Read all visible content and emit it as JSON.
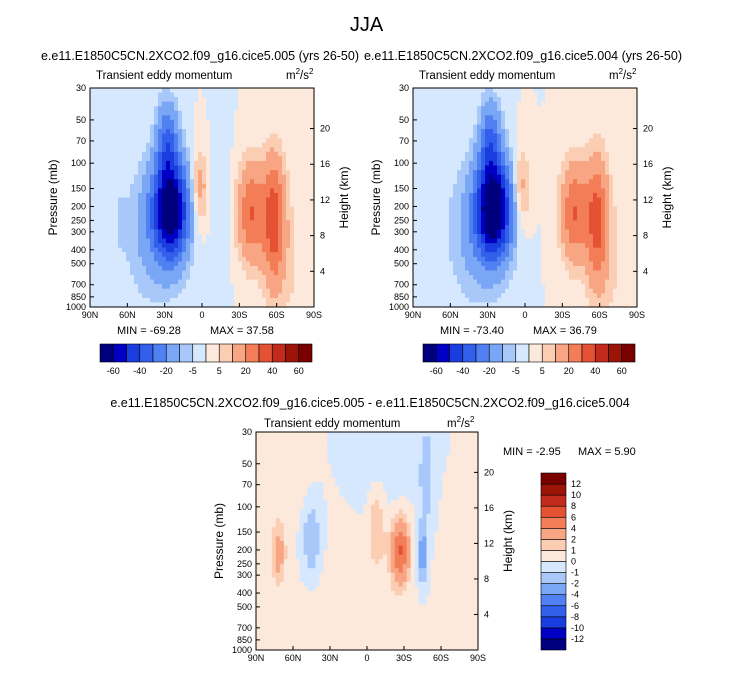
{
  "main_title": "JJA",
  "palette": [
    "#00007f",
    "#0000c4",
    "#1a3de0",
    "#3260ea",
    "#5080f2",
    "#7aa6f6",
    "#a8c8fa",
    "#d6e8fd",
    "#fde9dc",
    "#fbcdb2",
    "#f7a582",
    "#f27d56",
    "#e45233",
    "#c22b1c",
    "#9b1408",
    "#7a0000"
  ],
  "chart_data": [
    {
      "type": "heatmap",
      "title": "e.e11.E1850C5CN.2XCO2.f09_g16.cice5.005 (yrs 26-50)",
      "subtitle": "Transient eddy momentum",
      "units_base": "m",
      "units_exp1": "2",
      "units_mid": "/s",
      "units_exp2": "2",
      "xlabel": "",
      "ylabel": "Pressure (mb)",
      "y2label": "Height (km)",
      "xticks": [
        "90N",
        "60N",
        "30N",
        "0",
        "30S",
        "60S",
        "90S"
      ],
      "xlim": [
        90,
        -90
      ],
      "yticks": [
        "30",
        "50",
        "70",
        "100",
        "150",
        "200",
        "250",
        "300",
        "400",
        "500",
        "700",
        "850",
        "1000"
      ],
      "yticks_values": [
        30,
        50,
        70,
        100,
        150,
        200,
        250,
        300,
        400,
        500,
        700,
        850,
        1000
      ],
      "ylim": [
        30,
        1000
      ],
      "y2ticks": [
        "20",
        "16",
        "12",
        "8",
        "4"
      ],
      "y2ticks_values": [
        20,
        16,
        12,
        8,
        4
      ],
      "min_label": "MIN = -69.28",
      "max_label": "MAX = 37.58",
      "min": -69.28,
      "max": 37.58,
      "levels": [
        -70,
        -60,
        -50,
        -40,
        -30,
        -20,
        -10,
        -5,
        0,
        5,
        10,
        20,
        30,
        40,
        50,
        60,
        70
      ],
      "colorbar_labels": [
        "-60",
        "-40",
        "-20",
        "-5",
        "5",
        "20",
        "40",
        "60"
      ],
      "colorbar_label_levels": [
        -60,
        -40,
        -20,
        -5,
        5,
        20,
        40,
        60
      ],
      "features": [
        {
          "lat": 25,
          "p": 210,
          "amp": -68,
          "wlat": 10,
          "wz": 0.55
        },
        {
          "lat": 28,
          "p": 70,
          "amp": -28,
          "wlat": 6,
          "wz": 0.45
        },
        {
          "lat": 40,
          "p": 300,
          "amp": -12,
          "wlat": 16,
          "wz": 0.8
        },
        {
          "lat": -58,
          "p": 250,
          "amp": 34,
          "wlat": 6,
          "wz": 0.7
        },
        {
          "lat": -40,
          "p": 220,
          "amp": 30,
          "wlat": 8,
          "wz": 0.55
        },
        {
          "lat": 2,
          "p": 150,
          "amp": 16,
          "wlat": 5,
          "wz": 0.45
        },
        {
          "lat": -70,
          "p": 500,
          "amp": 5,
          "wlat": 14,
          "wz": 1.0
        },
        {
          "lat": 65,
          "p": 250,
          "amp": -5,
          "wlat": 3,
          "wz": 0.3
        },
        {
          "lat": -15,
          "p": 200,
          "amp": -4,
          "wlat": 6,
          "wz": 0.9
        }
      ]
    },
    {
      "type": "heatmap",
      "title": "e.e11.E1850C5CN.2XCO2.f09_g16.cice5.004 (yrs 26-50)",
      "subtitle": "Transient eddy momentum",
      "units_base": "m",
      "units_exp1": "2",
      "units_mid": "/s",
      "units_exp2": "2",
      "xlabel": "",
      "ylabel": "Pressure (mb)",
      "y2label": "Height (km)",
      "xticks": [
        "90N",
        "60N",
        "30N",
        "0",
        "30S",
        "60S",
        "90S"
      ],
      "xlim": [
        90,
        -90
      ],
      "yticks": [
        "30",
        "50",
        "70",
        "100",
        "150",
        "200",
        "250",
        "300",
        "400",
        "500",
        "700",
        "850",
        "1000"
      ],
      "yticks_values": [
        30,
        50,
        70,
        100,
        150,
        200,
        250,
        300,
        400,
        500,
        700,
        850,
        1000
      ],
      "ylim": [
        30,
        1000
      ],
      "y2ticks": [
        "20",
        "16",
        "12",
        "8",
        "4"
      ],
      "y2ticks_values": [
        20,
        16,
        12,
        8,
        4
      ],
      "min_label": "MIN = -73.40",
      "max_label": "MAX = 36.79",
      "min": -73.4,
      "max": 36.79,
      "levels": [
        -70,
        -60,
        -50,
        -40,
        -30,
        -20,
        -10,
        -5,
        0,
        5,
        10,
        20,
        30,
        40,
        50,
        60,
        70
      ],
      "colorbar_labels": [
        "-60",
        "-40",
        "-20",
        "-5",
        "5",
        "20",
        "40",
        "60"
      ],
      "colorbar_label_levels": [
        -60,
        -40,
        -20,
        -5,
        5,
        20,
        40,
        60
      ],
      "features": [
        {
          "lat": 25,
          "p": 210,
          "amp": -72,
          "wlat": 10,
          "wz": 0.55
        },
        {
          "lat": 28,
          "p": 70,
          "amp": -28,
          "wlat": 6,
          "wz": 0.45
        },
        {
          "lat": 40,
          "p": 300,
          "amp": -12,
          "wlat": 16,
          "wz": 0.8
        },
        {
          "lat": -58,
          "p": 250,
          "amp": 32,
          "wlat": 6,
          "wz": 0.7
        },
        {
          "lat": -40,
          "p": 220,
          "amp": 30,
          "wlat": 8,
          "wz": 0.55
        },
        {
          "lat": 3,
          "p": 150,
          "amp": 15,
          "wlat": 5,
          "wz": 0.45
        },
        {
          "lat": -70,
          "p": 500,
          "amp": 5,
          "wlat": 14,
          "wz": 1.0
        },
        {
          "lat": 75,
          "p": 60,
          "amp": -4,
          "wlat": 10,
          "wz": 0.6
        }
      ]
    },
    {
      "type": "heatmap",
      "title": "e.e11.E1850C5CN.2XCO2.f09_g16.cice5.005 - e.e11.E1850C5CN.2XCO2.f09_g16.cice5.004",
      "subtitle": "Transient eddy momentum",
      "units_base": "m",
      "units_exp1": "2",
      "units_mid": "/s",
      "units_exp2": "2",
      "xlabel": "",
      "ylabel": "Pressure (mb)",
      "y2label": "Height (km)",
      "xticks": [
        "90N",
        "60N",
        "30N",
        "0",
        "30S",
        "60S",
        "90S"
      ],
      "xlim": [
        90,
        -90
      ],
      "yticks": [
        "30",
        "50",
        "70",
        "100",
        "150",
        "200",
        "250",
        "300",
        "400",
        "500",
        "700",
        "850",
        "1000"
      ],
      "yticks_values": [
        30,
        50,
        70,
        100,
        150,
        200,
        250,
        300,
        400,
        500,
        700,
        850,
        1000
      ],
      "ylim": [
        30,
        1000
      ],
      "y2ticks": [
        "20",
        "16",
        "12",
        "8",
        "4"
      ],
      "y2ticks_values": [
        20,
        16,
        12,
        8,
        4
      ],
      "min_label": "MIN =  -2.95",
      "max_label": "MAX =   5.90",
      "min": -2.95,
      "max": 5.9,
      "levels": [
        -14,
        -12,
        -10,
        -8,
        -6,
        -4,
        -2,
        -1,
        0,
        1,
        2,
        4,
        6,
        8,
        10,
        12,
        14
      ],
      "colorbar_labels": [
        "12",
        "10",
        "8",
        "6",
        "4",
        "2",
        "1",
        "0",
        "-1",
        "-2",
        "-4",
        "-6",
        "-8",
        "-10",
        "-12"
      ],
      "colorbar_label_levels": [
        12,
        10,
        8,
        6,
        4,
        2,
        1,
        0,
        -1,
        -2,
        -4,
        -6,
        -8,
        -10,
        -12
      ],
      "features": [
        {
          "lat": -27,
          "p": 200,
          "amp": 5.9,
          "wlat": 5,
          "wz": 0.35
        },
        {
          "lat": -8,
          "p": 130,
          "amp": 1.8,
          "wlat": 5,
          "wz": 0.45
        },
        {
          "lat": 72,
          "p": 210,
          "amp": 2.6,
          "wlat": 4,
          "wz": 0.35
        },
        {
          "lat": 45,
          "p": 170,
          "amp": -2.2,
          "wlat": 6,
          "wz": 0.45
        },
        {
          "lat": -45,
          "p": 220,
          "amp": -2.9,
          "wlat": 3,
          "wz": 0.35
        },
        {
          "lat": -48,
          "p": 60,
          "amp": -1.8,
          "wlat": 4,
          "wz": 0.6
        },
        {
          "lat": 10,
          "p": 500,
          "amp": 0.6,
          "wlat": 40,
          "wz": 1.2
        },
        {
          "lat": 60,
          "p": 60,
          "amp": 0.6,
          "wlat": 10,
          "wz": 0.6
        },
        {
          "lat": -10,
          "p": 60,
          "amp": -0.7,
          "wlat": 20,
          "wz": 0.6
        }
      ]
    }
  ]
}
